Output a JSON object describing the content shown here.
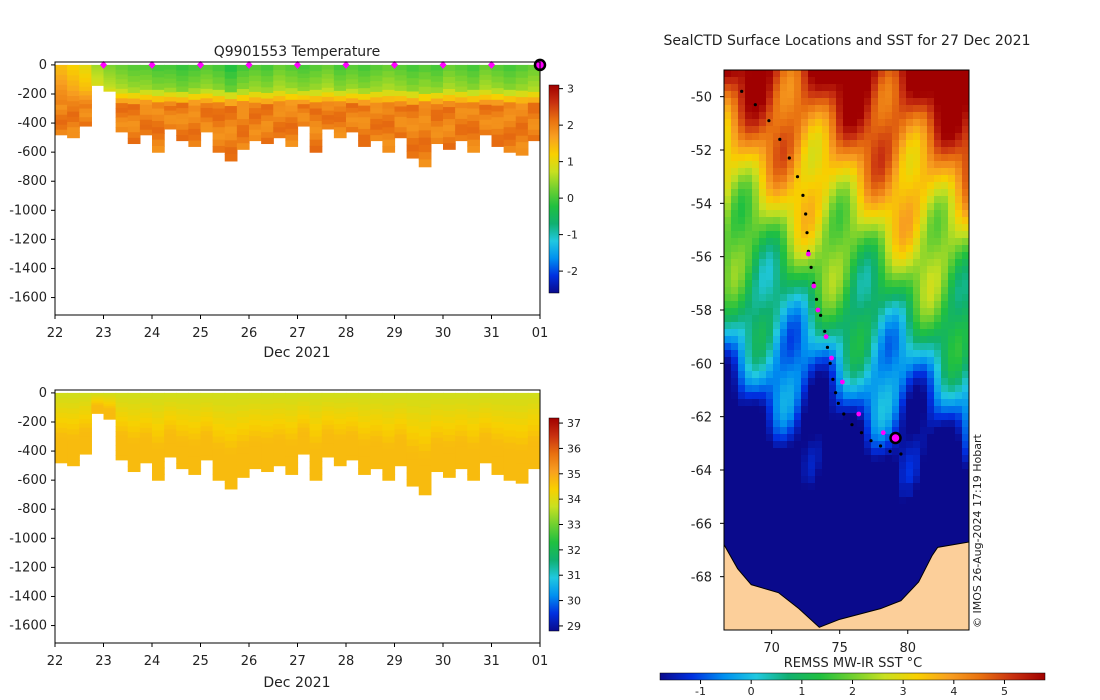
{
  "colors": {
    "temp_scale": [
      "#0a0a8c",
      "#0030e0",
      "#0090f0",
      "#20c8e0",
      "#10b070",
      "#20c040",
      "#70d030",
      "#c8e020",
      "#f8d000",
      "#f8a020",
      "#e87010",
      "#c83010",
      "#a00000"
    ],
    "salinity_scale": [
      "#0a0a8c",
      "#0030e0",
      "#0090f0",
      "#20c8e0",
      "#10b070",
      "#20c040",
      "#70d030",
      "#c8e020",
      "#f8d000",
      "#f8a020",
      "#e87010",
      "#c83010",
      "#a00000"
    ],
    "sst_scale": [
      "#0a0a8c",
      "#0030e0",
      "#0090f0",
      "#20c8e0",
      "#10b070",
      "#20c040",
      "#70d030",
      "#c8e020",
      "#f8d000",
      "#f8a020",
      "#e87010",
      "#c83010",
      "#a00000"
    ],
    "land": "#fccf9a",
    "marker": "#ff00ff"
  },
  "chart_data": [
    {
      "type": "heatmap",
      "title": "Q9901553  Temperature",
      "xlabel": "Dec 2021",
      "ylabel": "",
      "x_ticks": [
        "22",
        "23",
        "24",
        "25",
        "26",
        "27",
        "28",
        "29",
        "30",
        "31",
        "01"
      ],
      "y_ticks": [
        "0",
        "-200",
        "-400",
        "-600",
        "-800",
        "-1000",
        "-1200",
        "-1400",
        "-1600"
      ],
      "ylim": [
        -1720,
        20
      ],
      "colorbar_ticks": [
        "3",
        "2",
        "1",
        "0",
        "-1",
        "-2"
      ],
      "colorbar_range": [
        -2.6,
        3.1
      ],
      "profile_days": [
        22.0,
        22.25,
        22.5,
        22.75,
        23.0,
        23.25,
        23.5,
        23.75,
        24.0,
        24.25,
        24.5,
        24.75,
        25.0,
        25.25,
        25.5,
        25.75,
        26.0,
        26.25,
        26.5,
        26.75,
        27.0,
        27.25,
        27.5,
        27.75,
        28.0,
        28.25,
        28.5,
        28.75,
        29.0,
        29.25,
        29.5,
        29.75,
        30.0,
        30.25,
        30.5,
        30.75,
        31.0,
        31.25,
        31.5,
        31.75,
        32.0
      ],
      "profile_depths": [
        -480,
        -500,
        -420,
        -140,
        -180,
        -460,
        -540,
        -480,
        -600,
        -440,
        -520,
        -560,
        -460,
        -600,
        -660,
        -580,
        -520,
        -540,
        -500,
        -560,
        -420,
        -600,
        -440,
        -500,
        -460,
        -560,
        -520,
        -600,
        -500,
        -640,
        -700,
        -540,
        -580,
        -520,
        -600,
        -480,
        -560,
        -600,
        -620,
        -520,
        -560
      ],
      "marker_days": [
        23,
        24,
        25,
        26,
        27,
        28,
        29,
        30,
        31
      ],
      "current_day": 32,
      "surface_temp": [
        1.4,
        1.2,
        1.0,
        0.5,
        0.3,
        0.2,
        0.1,
        0.1,
        0.0,
        0.0,
        -0.1,
        0.0,
        0.1,
        0.0,
        -0.2,
        0.0,
        0.1,
        0.0,
        0.2,
        0.1,
        0.0,
        0.1,
        0.2,
        0.0,
        0.1,
        0.0,
        0.1,
        0.2,
        0.1,
        0.0,
        0.1,
        0.0,
        0.2,
        0.1,
        0.0,
        0.2,
        0.1,
        0.0,
        0.1,
        0.2,
        0.1
      ],
      "deep_temp": 2.0
    },
    {
      "type": "heatmap",
      "title": "",
      "xlabel": "Dec 2021",
      "ylabel": "",
      "x_ticks": [
        "22",
        "23",
        "24",
        "25",
        "26",
        "27",
        "28",
        "29",
        "30",
        "31",
        "01"
      ],
      "y_ticks": [
        "0",
        "-200",
        "-400",
        "-600",
        "-800",
        "-1000",
        "-1200",
        "-1400",
        "-1600"
      ],
      "ylim": [
        -1720,
        20
      ],
      "colorbar_ticks": [
        "37",
        "36",
        "35",
        "34",
        "33",
        "32",
        "31",
        "30",
        "29"
      ],
      "colorbar_range": [
        28.8,
        37.2
      ],
      "surface_salinity": 33.8,
      "deep_salinity": 34.7
    },
    {
      "type": "heatmap",
      "title": "SealCTD Surface Locations and SST for 27 Dec 2021",
      "x_ticks": [
        "70",
        "75",
        "80"
      ],
      "y_ticks": [
        "-50",
        "-52",
        "-54",
        "-56",
        "-58",
        "-60",
        "-62",
        "-64",
        "-66",
        "-68"
      ],
      "xlim": [
        66.5,
        84.5
      ],
      "ylim": [
        -70.0,
        -49.0
      ],
      "colorbar_label": "REMSS MW-IR SST °C",
      "colorbar_ticks": [
        "-1",
        "0",
        "1",
        "2",
        "3",
        "4",
        "5"
      ],
      "colorbar_range": [
        -1.8,
        5.8
      ],
      "track_lon": [
        67.8,
        68.8,
        69.8,
        70.6,
        71.3,
        71.9,
        72.3,
        72.5,
        72.6,
        72.7,
        72.9,
        73.1,
        73.3,
        73.6,
        73.9,
        74.1,
        74.3,
        74.5,
        74.7,
        74.9,
        75.3,
        75.9,
        76.6,
        77.3,
        78.0,
        78.7,
        79.5
      ],
      "track_lat": [
        -49.8,
        -50.3,
        -50.9,
        -51.6,
        -52.3,
        -53.0,
        -53.7,
        -54.4,
        -55.1,
        -55.8,
        -56.4,
        -57.0,
        -57.6,
        -58.2,
        -58.8,
        -59.4,
        -60.0,
        -60.6,
        -61.1,
        -61.5,
        -61.9,
        -62.3,
        -62.6,
        -62.9,
        -63.1,
        -63.3,
        -63.4
      ],
      "marker_lon": [
        72.7,
        73.1,
        73.4,
        74.0,
        74.4,
        75.2,
        76.4,
        78.2
      ],
      "marker_lat": [
        -55.9,
        -57.1,
        -58.0,
        -59.0,
        -59.8,
        -60.7,
        -61.9,
        -62.6
      ],
      "current_lon": 79.1,
      "current_lat": -62.8,
      "credit": "© IMOS 26-Aug-2024 17:19 Hobart"
    }
  ]
}
